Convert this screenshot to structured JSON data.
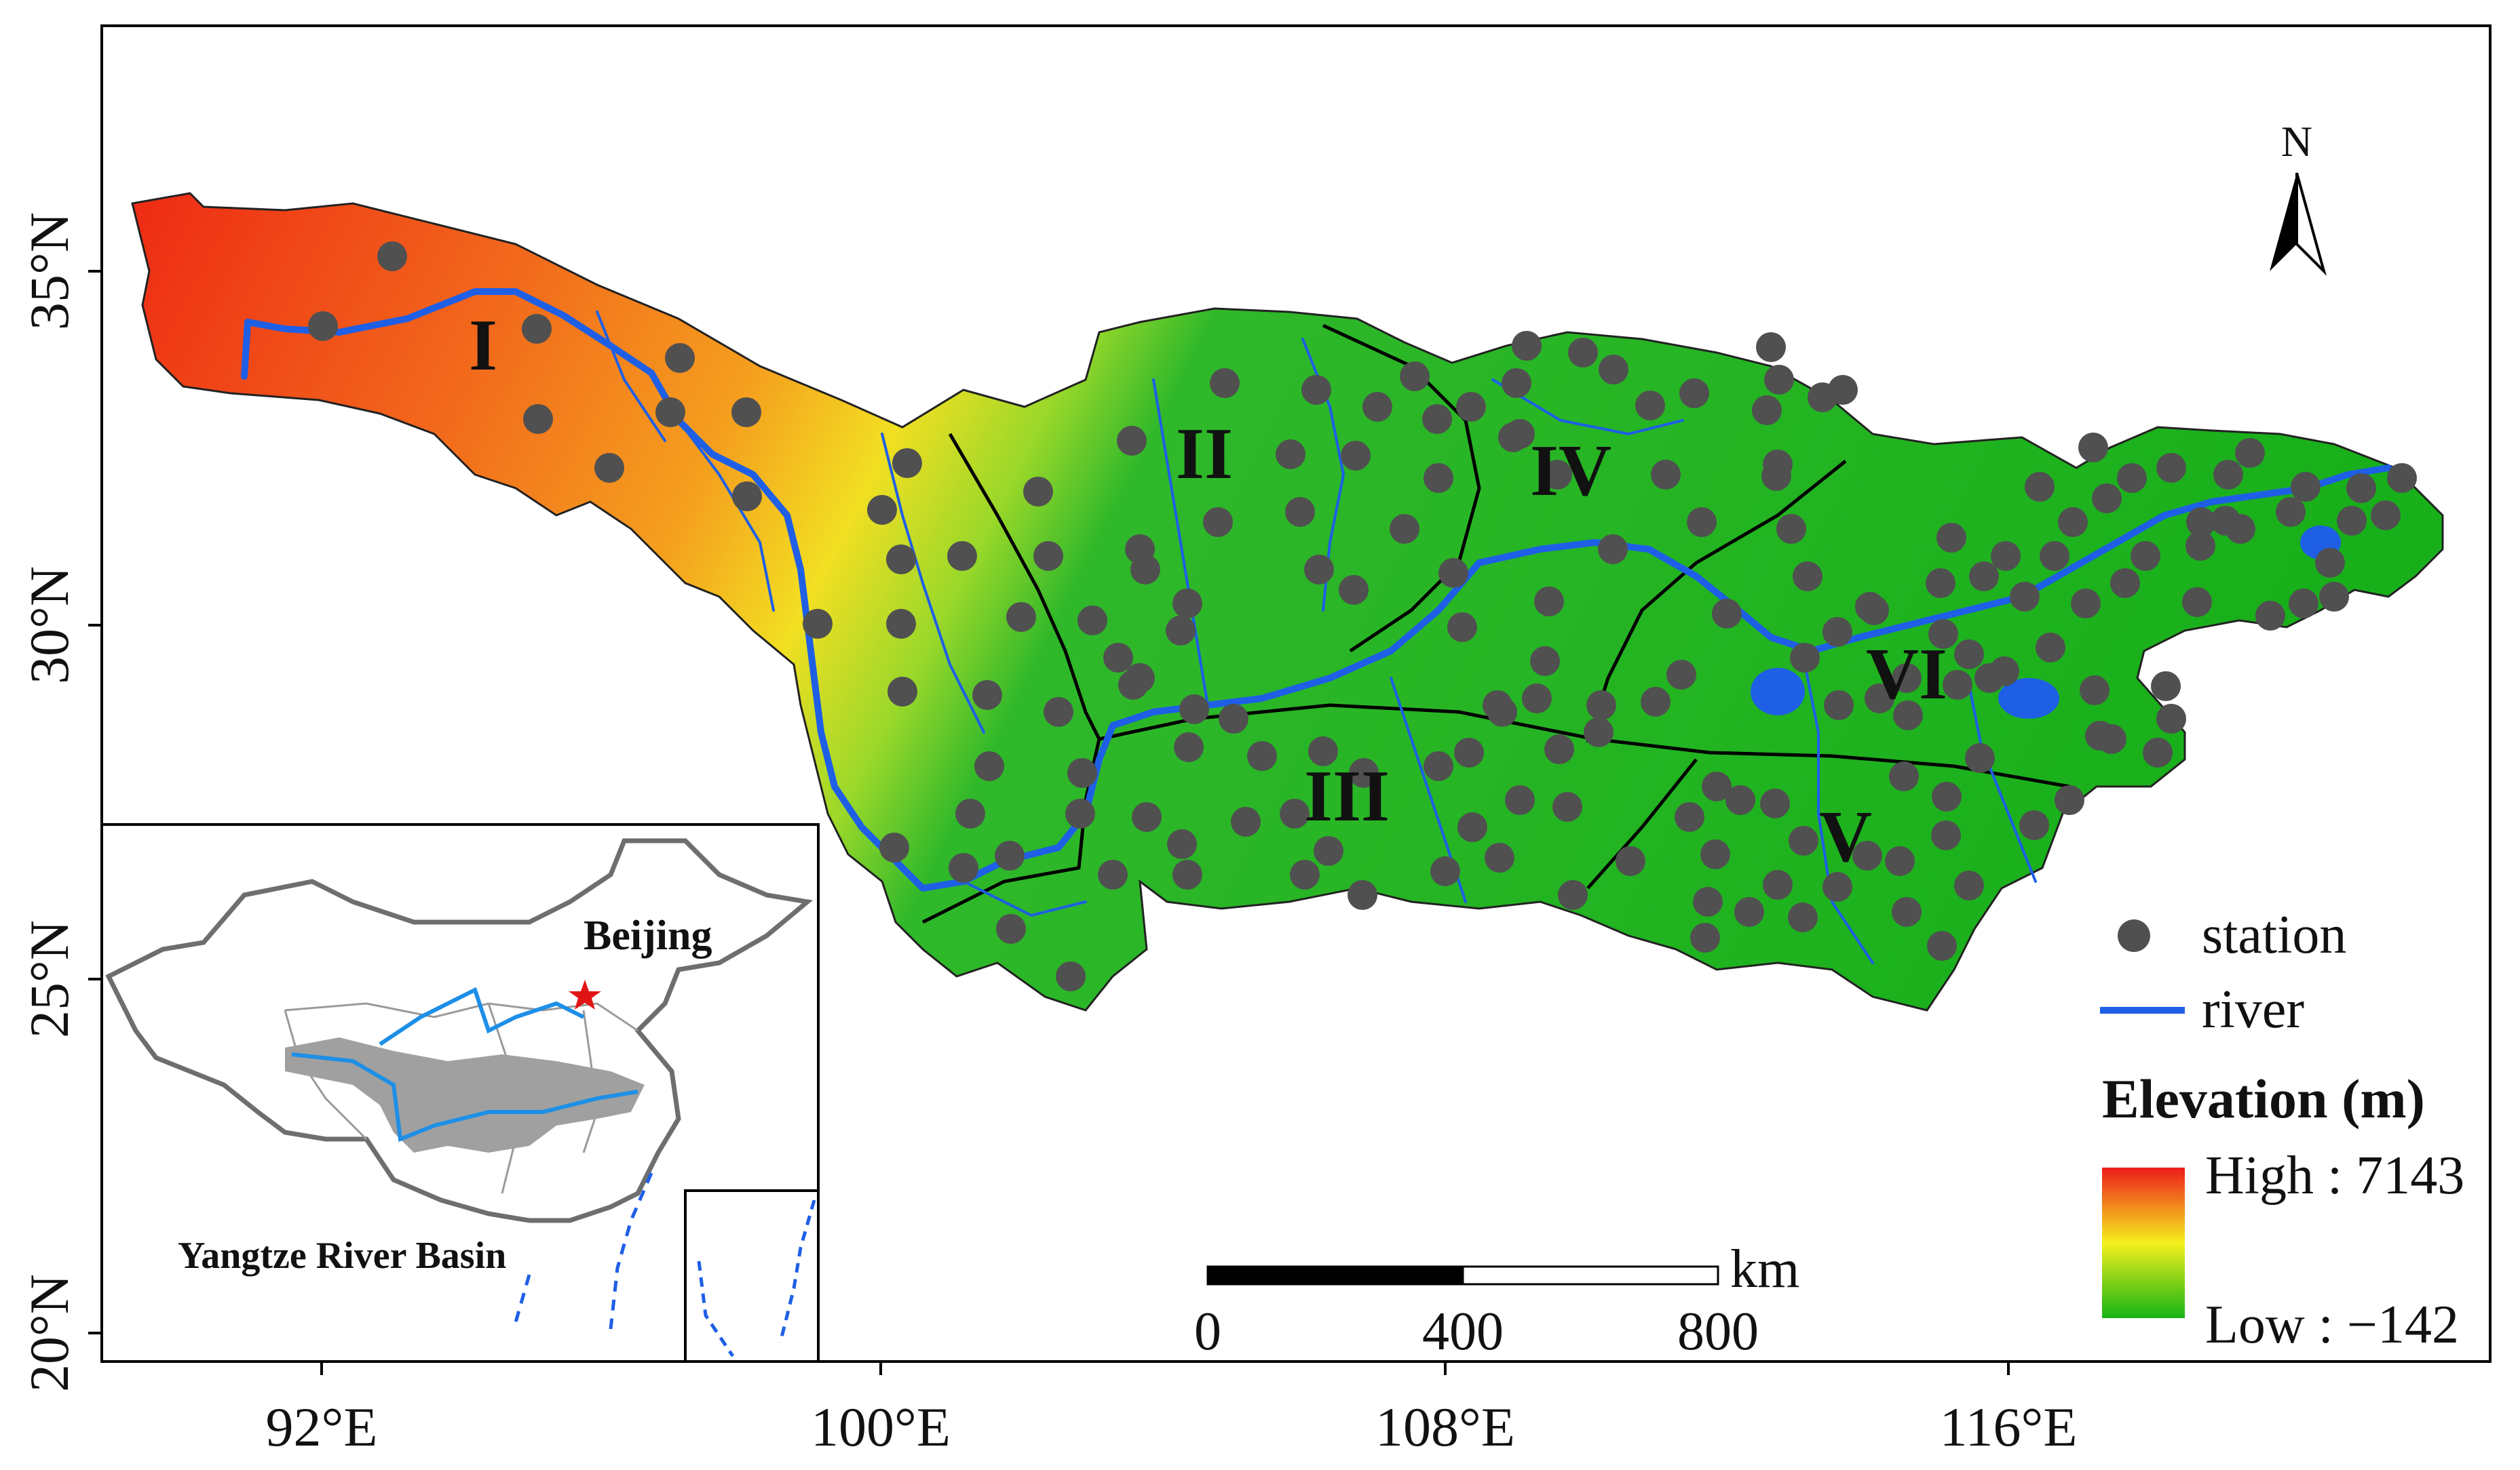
{
  "axes": {
    "y_ticks": [
      "35°N",
      "30°N",
      "25°N",
      "20°N"
    ],
    "x_ticks": [
      "92°E",
      "100°E",
      "108°E",
      "116°E"
    ]
  },
  "regions": [
    "I",
    "II",
    "III",
    "IV",
    "V",
    "VI"
  ],
  "north_arrow": "N",
  "legend": {
    "station": "station",
    "river": "river",
    "elevation_title": "Elevation (m)",
    "high": "High : 7143",
    "low": "Low : −142",
    "colors": {
      "high": "#ee1c1c",
      "mid": "#f2f21c",
      "low": "#15b415",
      "river": "#1e5fe6",
      "station": "#505050"
    }
  },
  "scale_bar": {
    "unit": "km",
    "labels": [
      "0",
      "400",
      "800"
    ]
  },
  "inset": {
    "capital_label": "Beijing",
    "basin_label": "Yangtze River Basin"
  }
}
